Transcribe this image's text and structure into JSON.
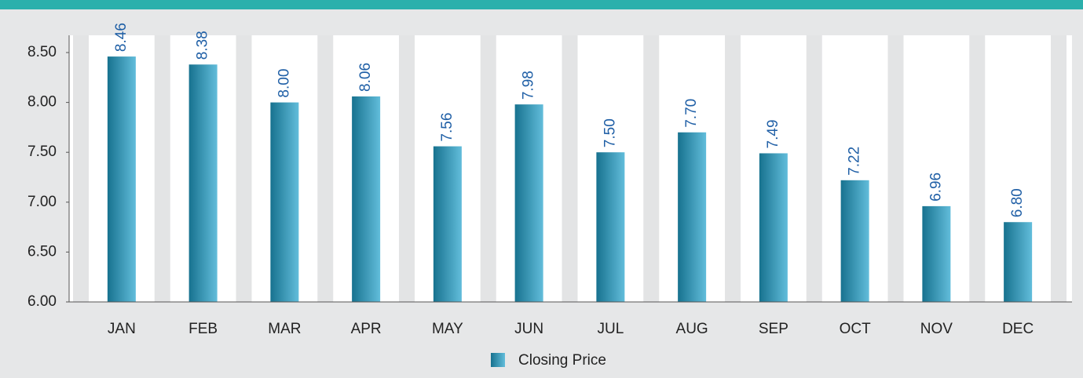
{
  "chart_data": {
    "type": "bar",
    "categories": [
      "JAN",
      "FEB",
      "MAR",
      "APR",
      "MAY",
      "JUN",
      "JUL",
      "AUG",
      "SEP",
      "OCT",
      "NOV",
      "DEC"
    ],
    "series": [
      {
        "name": "Closing Price",
        "color": "#2a8fb0",
        "values": [
          8.46,
          8.38,
          8.0,
          8.06,
          7.56,
          7.98,
          7.5,
          7.7,
          7.49,
          7.22,
          6.96,
          6.8
        ],
        "value_labels": [
          "8.46",
          "8.38",
          "8.00",
          "8.06",
          "7.56",
          "7.98",
          "7.50",
          "7.70",
          "7.49",
          "7.22",
          "6.96",
          "6.80"
        ]
      }
    ],
    "ylim": [
      6.0,
      8.5
    ],
    "yticks": [
      {
        "value": 6.0,
        "label": "6.00"
      },
      {
        "value": 6.5,
        "label": "6.50"
      },
      {
        "value": 7.0,
        "label": "7.00"
      },
      {
        "value": 7.5,
        "label": "7.50"
      },
      {
        "value": 8.0,
        "label": "8.00"
      },
      {
        "value": 8.5,
        "label": "8.50"
      }
    ],
    "legend": "bottom"
  }
}
